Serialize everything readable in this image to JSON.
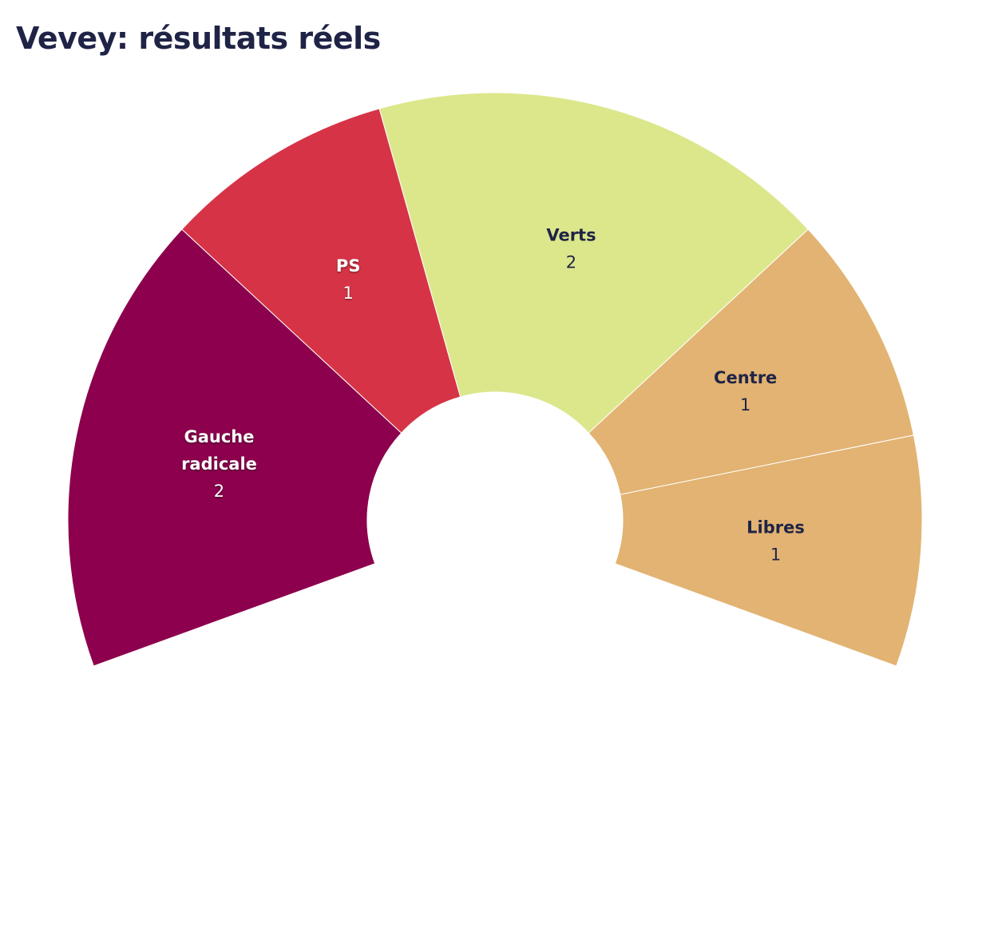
{
  "chart_data": {
    "type": "pie",
    "title": "Vevey: résultats réels",
    "layout": "semicircle-donut",
    "slices": [
      {
        "label": "Gauche radicale",
        "label_lines": [
          "Gauche",
          "radicale"
        ],
        "value": 2,
        "color": "#8c004d",
        "text_color": "#ffffff"
      },
      {
        "label": "PS",
        "label_lines": [
          "PS"
        ],
        "value": 1,
        "color": "#d63446",
        "text_color": "#ffffff"
      },
      {
        "label": "Verts",
        "label_lines": [
          "Verts"
        ],
        "value": 2,
        "color": "#dce78c",
        "text_color": "#1f2446"
      },
      {
        "label": "Centre",
        "label_lines": [
          "Centre"
        ],
        "value": 1,
        "color": "#e2b372",
        "text_color": "#1f2446"
      },
      {
        "label": "Libres",
        "label_lines": [
          "Libres"
        ],
        "value": 1,
        "color": "#e2b372",
        "text_color": "#1f2446"
      }
    ]
  }
}
